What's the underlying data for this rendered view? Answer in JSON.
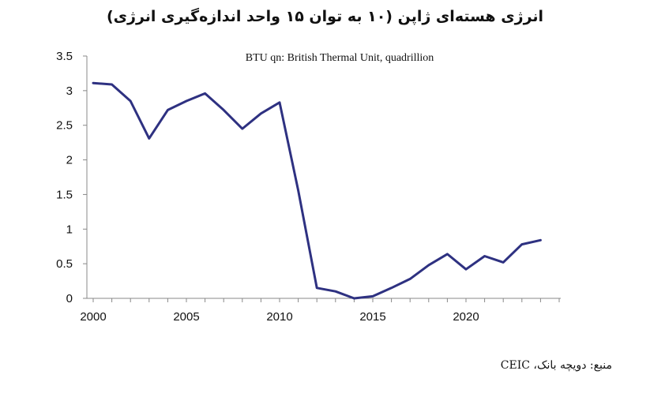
{
  "title": "انرژی هسته‌ای ژاپن (۱۰ به توان ۱۵ واحد اندازه‌گیری انرژی)",
  "source": "منبع: دویچه بانک، CEIC",
  "chart_data": {
    "type": "line",
    "title": "انرژی هسته‌ای ژاپن (۱۰ به توان ۱۵ واحد اندازه‌گیری انرژی)",
    "subtitle": "BTU qn: British Thermal Unit, quadrillion",
    "xlabel": "",
    "ylabel": "",
    "xlim": [
      2000,
      2025
    ],
    "ylim": [
      0,
      3.5
    ],
    "x_ticks": [
      "2000",
      "2005",
      "2010",
      "2015",
      "2020"
    ],
    "y_ticks": [
      "0",
      "0.5",
      "1",
      "1.5",
      "2",
      "2.5",
      "3",
      "3.5"
    ],
    "grid": false,
    "line_color": "#2e3181",
    "series": [
      {
        "x": [
          2000,
          2001,
          2002,
          2003,
          2004,
          2005,
          2006,
          2007,
          2008,
          2009,
          2010,
          2011,
          2012,
          2013,
          2014,
          2015,
          2016,
          2017,
          2018,
          2019,
          2020,
          2021,
          2022,
          2023,
          2024
        ],
        "values": [
          3.11,
          3.09,
          2.85,
          2.31,
          2.72,
          2.85,
          2.96,
          2.72,
          2.45,
          2.67,
          2.83,
          1.56,
          0.15,
          0.1,
          0.0,
          0.03,
          0.15,
          0.28,
          0.48,
          0.64,
          0.42,
          0.61,
          0.52,
          0.78,
          0.84
        ]
      }
    ]
  }
}
